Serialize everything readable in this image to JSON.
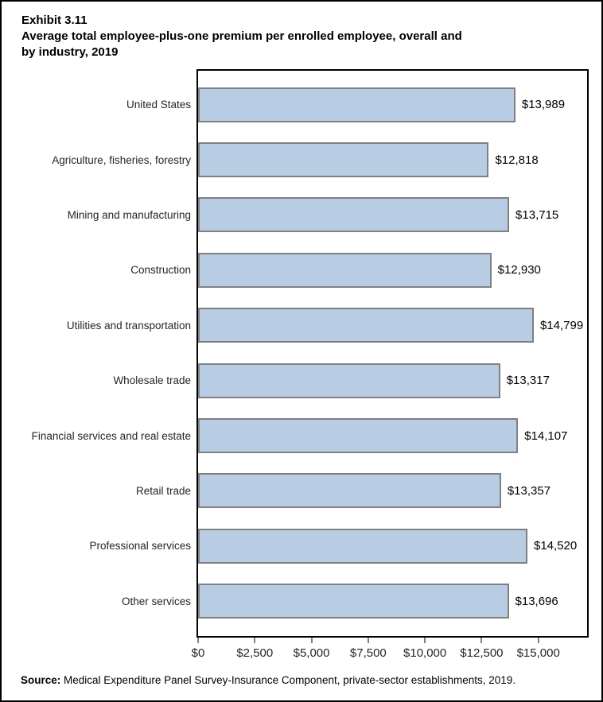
{
  "page": {
    "exhibit_number": "Exhibit 3.11",
    "title_line1": "Average total employee-plus-one premium per enrolled employee, overall and",
    "title_line2": "by industry, 2019",
    "source_label": "Source:",
    "source_text": " Medical Expenditure Panel Survey-Insurance Component, private-sector establishments, 2019."
  },
  "chart_data": {
    "type": "bar",
    "orientation": "horizontal",
    "title": "Exhibit 3.11 Average total employee-plus-one premium per enrolled employee, overall and by industry, 2019",
    "categories": [
      "United States",
      "Agriculture, fisheries, forestry",
      "Mining and manufacturing",
      "Construction",
      "Utilities and transportation",
      "Wholesale trade",
      "Financial services and real estate",
      "Retail trade",
      "Professional services",
      "Other services"
    ],
    "values": [
      13989,
      12818,
      13715,
      12930,
      14799,
      13317,
      14107,
      13357,
      14520,
      13696
    ],
    "value_labels": [
      "$13,989",
      "$12,818",
      "$13,715",
      "$12,930",
      "$14,799",
      "$13,317",
      "$14,107",
      "$13,357",
      "$14,520",
      "$13,696"
    ],
    "xlabel": "",
    "ylabel": "",
    "xlim": [
      0,
      17150
    ],
    "x_ticks": [
      {
        "value": 0,
        "label": "$0"
      },
      {
        "value": 2500,
        "label": "$2,500"
      },
      {
        "value": 5000,
        "label": "$5,000"
      },
      {
        "value": 7500,
        "label": "$7,500"
      },
      {
        "value": 10000,
        "label": "$10,000"
      },
      {
        "value": 12500,
        "label": "$12,500"
      },
      {
        "value": 15000,
        "label": "$15,000"
      }
    ],
    "grid": false,
    "legend": "none",
    "bar_color": "#B8CCE4",
    "bar_border_color": "#808080",
    "plot_border_color": "#000000"
  }
}
